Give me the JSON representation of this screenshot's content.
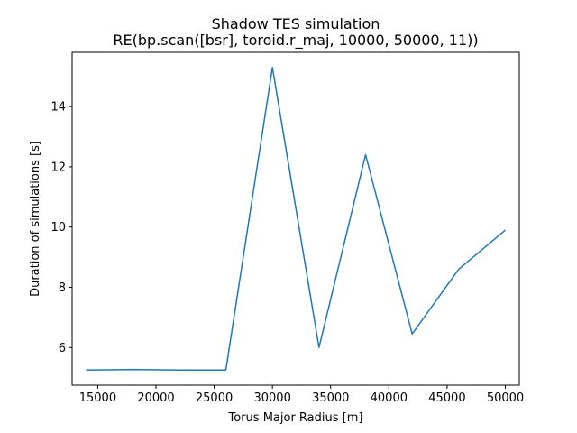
{
  "chart_data": {
    "type": "line",
    "title": "Shadow TES simulation",
    "subtitle": "RE(bp.scan([bsr], toroid.r_maj, 10000, 50000, 11))",
    "xlabel": "Torus Major Radius [m]",
    "ylabel": "Duration of simulations [s]",
    "xlim": [
      12800,
      51200
    ],
    "ylim": [
      4.75,
      15.8
    ],
    "xticks": [
      15000,
      20000,
      25000,
      30000,
      35000,
      40000,
      45000,
      50000
    ],
    "yticks": [
      6,
      8,
      10,
      12,
      14
    ],
    "grid": false,
    "legend": "none",
    "series": [
      {
        "color": "#1f77b4",
        "x": [
          14000,
          18000,
          22000,
          26000,
          30000,
          34000,
          38000,
          42000,
          46000,
          50000
        ],
        "y": [
          5.25,
          5.27,
          5.25,
          5.25,
          15.3,
          6.0,
          12.4,
          6.45,
          8.6,
          9.9
        ]
      }
    ]
  }
}
